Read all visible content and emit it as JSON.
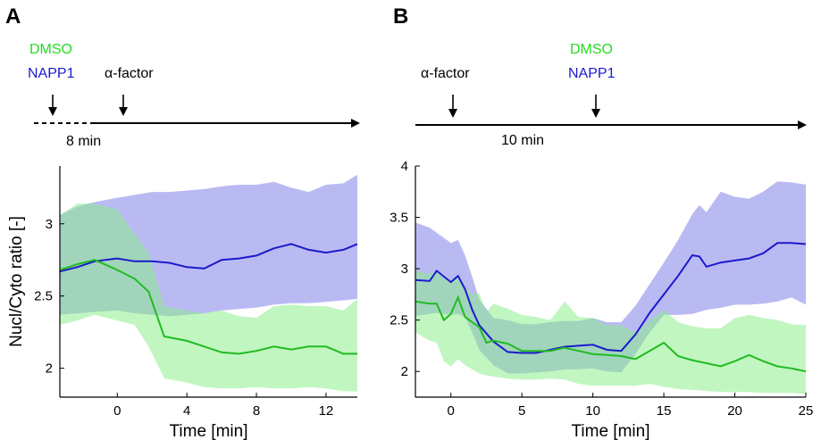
{
  "figure": {
    "panel_a_label": "A",
    "panel_b_label": "B"
  },
  "timeline_a": {
    "dmso_label": "DMSO",
    "napp1_label": "NAPP1",
    "alpha_label": "α-factor",
    "interval_label": "8 min",
    "dmso_color": "#22dd22",
    "napp1_color": "#1a1acc"
  },
  "timeline_b": {
    "alpha_label": "α-factor",
    "dmso_label": "DMSO",
    "napp1_label": "NAPP1",
    "interval_label": "10 min",
    "dmso_color": "#22dd22",
    "napp1_color": "#1a1acc"
  },
  "chart_data": [
    {
      "type": "line",
      "panel": "A",
      "xlabel": "Time [min]",
      "ylabel": "Nucl/Cyto ratio [-]",
      "xlim": [
        -3.3,
        13.8
      ],
      "ylim": [
        1.8,
        3.4
      ],
      "xticks": [
        0,
        4,
        8,
        12
      ],
      "yticks": [
        2,
        2.5,
        3
      ],
      "grid": false,
      "series": [
        {
          "color": "#1a1acc",
          "band_color": "#9999ee",
          "x": [
            -3.3,
            -2.3,
            -1.3,
            0,
            1,
            2,
            3,
            4,
            5,
            6,
            7,
            8,
            9,
            10,
            11,
            12,
            13,
            13.8
          ],
          "y": [
            2.67,
            2.7,
            2.74,
            2.76,
            2.74,
            2.74,
            2.73,
            2.7,
            2.69,
            2.75,
            2.76,
            2.78,
            2.83,
            2.86,
            2.82,
            2.8,
            2.82,
            2.86
          ],
          "lower": [
            2.37,
            2.38,
            2.39,
            2.4,
            2.38,
            2.37,
            2.36,
            2.37,
            2.38,
            2.4,
            2.41,
            2.42,
            2.44,
            2.45,
            2.45,
            2.46,
            2.47,
            2.48
          ],
          "upper": [
            3.06,
            3.12,
            3.15,
            3.18,
            3.2,
            3.22,
            3.22,
            3.23,
            3.24,
            3.26,
            3.27,
            3.27,
            3.29,
            3.25,
            3.22,
            3.27,
            3.28,
            3.34
          ]
        },
        {
          "color": "#22bb22",
          "band_color": "#88ee88",
          "x": [
            -3.3,
            -2.3,
            -1.3,
            0,
            1,
            1.8,
            2.7,
            4,
            5,
            6,
            7,
            8,
            9,
            10,
            11,
            12,
            13,
            13.8
          ],
          "y": [
            2.68,
            2.72,
            2.75,
            2.68,
            2.62,
            2.53,
            2.22,
            2.19,
            2.15,
            2.11,
            2.1,
            2.12,
            2.15,
            2.13,
            2.15,
            2.15,
            2.1,
            2.1
          ],
          "lower": [
            2.3,
            2.33,
            2.37,
            2.33,
            2.3,
            2.15,
            1.93,
            1.9,
            1.87,
            1.86,
            1.86,
            1.87,
            1.86,
            1.86,
            1.87,
            1.86,
            1.84,
            1.84
          ],
          "upper": [
            3.06,
            3.14,
            3.14,
            3.1,
            2.93,
            2.8,
            2.43,
            2.4,
            2.38,
            2.4,
            2.36,
            2.35,
            2.43,
            2.44,
            2.43,
            2.43,
            2.4,
            2.48
          ]
        }
      ]
    },
    {
      "type": "line",
      "panel": "B",
      "xlabel": "Time [min]",
      "ylabel": "",
      "xlim": [
        -2.5,
        25
      ],
      "ylim": [
        1.75,
        4
      ],
      "xticks": [
        0,
        5,
        10,
        15,
        20,
        25
      ],
      "yticks": [
        2,
        2.5,
        3,
        3.5,
        4
      ],
      "grid": false,
      "series": [
        {
          "color": "#1a1acc",
          "band_color": "#9999ee",
          "x": [
            -2.5,
            -1.5,
            -1,
            0,
            0.5,
            1,
            1.5,
            2,
            3,
            4,
            5,
            6,
            7,
            8,
            9,
            10,
            11,
            12,
            13,
            14,
            15,
            16,
            17,
            17.5,
            18,
            19,
            20,
            21,
            22,
            23,
            24,
            25
          ],
          "y": [
            2.89,
            2.88,
            2.98,
            2.87,
            2.93,
            2.8,
            2.6,
            2.45,
            2.29,
            2.19,
            2.18,
            2.18,
            2.21,
            2.24,
            2.25,
            2.26,
            2.21,
            2.2,
            2.36,
            2.57,
            2.75,
            2.93,
            3.13,
            3.12,
            3.02,
            3.06,
            3.08,
            3.1,
            3.15,
            3.25,
            3.25,
            3.24
          ],
          "lower": [
            2.54,
            2.56,
            2.57,
            2.55,
            2.56,
            2.53,
            2.38,
            2.21,
            2.06,
            1.98,
            1.98,
            1.99,
            2.0,
            2.02,
            2.02,
            2.03,
            2.0,
            1.99,
            2.17,
            2.38,
            2.55,
            2.55,
            2.56,
            2.58,
            2.6,
            2.62,
            2.65,
            2.65,
            2.66,
            2.68,
            2.72,
            2.65
          ],
          "upper": [
            3.45,
            3.4,
            3.35,
            3.25,
            3.28,
            3.13,
            2.92,
            2.7,
            2.52,
            2.5,
            2.46,
            2.46,
            2.48,
            2.49,
            2.49,
            2.52,
            2.48,
            2.48,
            2.64,
            2.85,
            3.06,
            3.28,
            3.53,
            3.62,
            3.55,
            3.75,
            3.7,
            3.68,
            3.75,
            3.85,
            3.84,
            3.82
          ]
        },
        {
          "color": "#22bb22",
          "band_color": "#88ee88",
          "x": [
            -2.5,
            -1.5,
            -1,
            -0.5,
            0,
            0.5,
            1,
            1.5,
            2,
            2.5,
            3,
            4,
            5,
            6,
            7,
            8,
            9,
            10,
            11,
            12,
            13,
            14,
            15,
            16,
            17,
            18,
            19,
            20,
            21,
            22,
            23,
            24,
            25
          ],
          "y": [
            2.68,
            2.66,
            2.66,
            2.5,
            2.56,
            2.72,
            2.53,
            2.48,
            2.43,
            2.28,
            2.3,
            2.27,
            2.2,
            2.2,
            2.2,
            2.23,
            2.2,
            2.17,
            2.16,
            2.15,
            2.12,
            2.2,
            2.28,
            2.15,
            2.11,
            2.08,
            2.05,
            2.1,
            2.16,
            2.1,
            2.05,
            2.03,
            2.0
          ],
          "lower": [
            2.38,
            2.3,
            2.28,
            2.1,
            2.05,
            2.12,
            2.06,
            2.02,
            1.98,
            1.96,
            1.95,
            1.93,
            1.92,
            1.92,
            1.93,
            1.92,
            1.88,
            1.86,
            1.86,
            1.86,
            1.86,
            1.88,
            1.85,
            1.83,
            1.82,
            1.81,
            1.8,
            1.8,
            1.8,
            1.79,
            1.79,
            1.79,
            1.78
          ],
          "upper": [
            2.98,
            2.95,
            2.98,
            2.92,
            2.86,
            2.95,
            2.82,
            2.75,
            2.76,
            2.58,
            2.66,
            2.61,
            2.55,
            2.53,
            2.5,
            2.68,
            2.53,
            2.52,
            2.45,
            2.45,
            2.38,
            2.5,
            2.6,
            2.48,
            2.44,
            2.42,
            2.42,
            2.52,
            2.55,
            2.52,
            2.5,
            2.46,
            2.45
          ]
        }
      ]
    }
  ]
}
